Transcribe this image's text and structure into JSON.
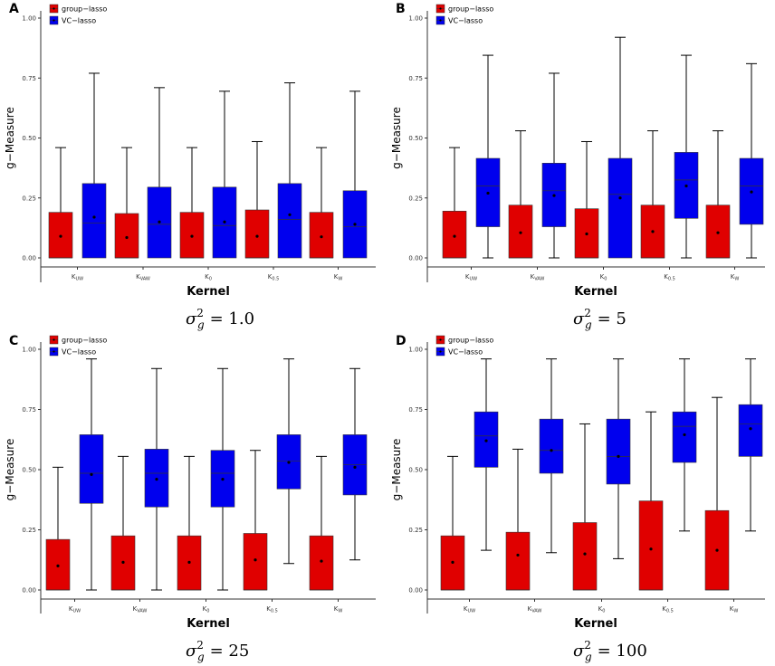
{
  "colors": {
    "group_lasso": "#e00000",
    "vc_lasso": "#0000ee",
    "axis": "#333333",
    "whisker": "#000000"
  },
  "chart_data": [
    {
      "panel": "A",
      "type": "box",
      "caption": {
        "symbol": "σ",
        "sup": "2",
        "sub": "g",
        "eq": "= 1.0"
      },
      "xlabel": "Kernel",
      "ylabel": "g−Measure",
      "ylim": [
        0,
        1
      ],
      "yticks": [
        "0.00",
        "0.25",
        "0.50",
        "0.75",
        "1.00"
      ],
      "categories": [
        {
          "base": "K",
          "sub": "UW"
        },
        {
          "base": "K",
          "sub": "VAW"
        },
        {
          "base": "K",
          "sub": "0"
        },
        {
          "base": "K",
          "sub": "0.5"
        },
        {
          "base": "K",
          "sub": "W"
        }
      ],
      "legend": [
        "group−lasso",
        "VC−lasso"
      ],
      "series": [
        {
          "name": "group−lasso",
          "boxes": [
            {
              "min": 0,
              "q1": 0,
              "median": 0,
              "q3": 0.19,
              "max": 0.46,
              "mean": 0.09
            },
            {
              "min": 0,
              "q1": 0,
              "median": 0,
              "q3": 0.185,
              "max": 0.46,
              "mean": 0.085
            },
            {
              "min": 0,
              "q1": 0,
              "median": 0,
              "q3": 0.19,
              "max": 0.46,
              "mean": 0.09
            },
            {
              "min": 0,
              "q1": 0,
              "median": 0,
              "q3": 0.2,
              "max": 0.485,
              "mean": 0.09
            },
            {
              "min": 0,
              "q1": 0,
              "median": 0,
              "q3": 0.19,
              "max": 0.46,
              "mean": 0.088
            }
          ]
        },
        {
          "name": "VC−lasso",
          "boxes": [
            {
              "min": 0,
              "q1": 0,
              "median": 0.145,
              "q3": 0.31,
              "max": 0.77,
              "mean": 0.17
            },
            {
              "min": 0,
              "q1": 0,
              "median": 0.14,
              "q3": 0.295,
              "max": 0.71,
              "mean": 0.15
            },
            {
              "min": 0,
              "q1": 0,
              "median": 0.135,
              "q3": 0.295,
              "max": 0.695,
              "mean": 0.15
            },
            {
              "min": 0,
              "q1": 0,
              "median": 0.16,
              "q3": 0.31,
              "max": 0.73,
              "mean": 0.18
            },
            {
              "min": 0,
              "q1": 0,
              "median": 0.13,
              "q3": 0.28,
              "max": 0.695,
              "mean": 0.14
            }
          ]
        }
      ]
    },
    {
      "panel": "B",
      "type": "box",
      "caption": {
        "symbol": "σ",
        "sup": "2",
        "sub": "g",
        "eq": "= 5"
      },
      "xlabel": "Kernel",
      "ylabel": "g−Measure",
      "ylim": [
        0,
        1
      ],
      "yticks": [
        "0.00",
        "0.25",
        "0.50",
        "0.75",
        "1.00"
      ],
      "categories": [
        {
          "base": "K",
          "sub": "UW"
        },
        {
          "base": "K",
          "sub": "VAW"
        },
        {
          "base": "K",
          "sub": "0"
        },
        {
          "base": "K",
          "sub": "0.5"
        },
        {
          "base": "K",
          "sub": "W"
        }
      ],
      "legend": [
        "group−lasso",
        "VC−lasso"
      ],
      "series": [
        {
          "name": "group−lasso",
          "boxes": [
            {
              "min": 0,
              "q1": 0,
              "median": 0,
              "q3": 0.195,
              "max": 0.46,
              "mean": 0.09
            },
            {
              "min": 0,
              "q1": 0,
              "median": 0,
              "q3": 0.22,
              "max": 0.53,
              "mean": 0.105
            },
            {
              "min": 0,
              "q1": 0,
              "median": 0,
              "q3": 0.205,
              "max": 0.485,
              "mean": 0.1
            },
            {
              "min": 0,
              "q1": 0,
              "median": 0,
              "q3": 0.22,
              "max": 0.53,
              "mean": 0.11
            },
            {
              "min": 0,
              "q1": 0,
              "median": 0,
              "q3": 0.22,
              "max": 0.53,
              "mean": 0.105
            }
          ]
        },
        {
          "name": "VC−lasso",
          "boxes": [
            {
              "min": 0,
              "q1": 0.13,
              "median": 0.3,
              "q3": 0.415,
              "max": 0.845,
              "mean": 0.27
            },
            {
              "min": 0,
              "q1": 0.13,
              "median": 0.28,
              "q3": 0.395,
              "max": 0.77,
              "mean": 0.26
            },
            {
              "min": 0,
              "q1": 0,
              "median": 0.265,
              "q3": 0.415,
              "max": 0.92,
              "mean": 0.25
            },
            {
              "min": 0,
              "q1": 0.165,
              "median": 0.325,
              "q3": 0.44,
              "max": 0.845,
              "mean": 0.3
            },
            {
              "min": 0,
              "q1": 0.14,
              "median": 0.3,
              "q3": 0.415,
              "max": 0.81,
              "mean": 0.275
            }
          ]
        }
      ]
    },
    {
      "panel": "C",
      "type": "box",
      "caption": {
        "symbol": "σ",
        "sup": "2",
        "sub": "g",
        "eq": "= 25"
      },
      "xlabel": "Kernel",
      "ylabel": "g−Measure",
      "ylim": [
        0,
        1
      ],
      "yticks": [
        "0.00",
        "0.25",
        "0.50",
        "0.75",
        "1.00"
      ],
      "categories": [
        {
          "base": "K",
          "sub": "UW"
        },
        {
          "base": "K",
          "sub": "VAW"
        },
        {
          "base": "K",
          "sub": "0"
        },
        {
          "base": "K",
          "sub": "0.5"
        },
        {
          "base": "K",
          "sub": "W"
        }
      ],
      "legend": [
        "group−lasso",
        "VC−lasso"
      ],
      "series": [
        {
          "name": "group−lasso",
          "boxes": [
            {
              "min": 0,
              "q1": 0,
              "median": 0,
              "q3": 0.21,
              "max": 0.51,
              "mean": 0.1
            },
            {
              "min": 0,
              "q1": 0,
              "median": 0,
              "q3": 0.225,
              "max": 0.555,
              "mean": 0.115
            },
            {
              "min": 0,
              "q1": 0,
              "median": 0,
              "q3": 0.225,
              "max": 0.555,
              "mean": 0.115
            },
            {
              "min": 0,
              "q1": 0,
              "median": 0,
              "q3": 0.235,
              "max": 0.58,
              "mean": 0.125
            },
            {
              "min": 0,
              "q1": 0,
              "median": 0,
              "q3": 0.225,
              "max": 0.555,
              "mean": 0.12
            }
          ]
        },
        {
          "name": "VC−lasso",
          "boxes": [
            {
              "min": 0,
              "q1": 0.36,
              "median": 0.485,
              "q3": 0.645,
              "max": 0.96,
              "mean": 0.48
            },
            {
              "min": 0,
              "q1": 0.345,
              "median": 0.485,
              "q3": 0.585,
              "max": 0.92,
              "mean": 0.46
            },
            {
              "min": 0,
              "q1": 0.345,
              "median": 0.485,
              "q3": 0.58,
              "max": 0.92,
              "mean": 0.46
            },
            {
              "min": 0.11,
              "q1": 0.42,
              "median": 0.535,
              "q3": 0.645,
              "max": 0.96,
              "mean": 0.53
            },
            {
              "min": 0.125,
              "q1": 0.395,
              "median": 0.52,
              "q3": 0.645,
              "max": 0.92,
              "mean": 0.51
            }
          ]
        }
      ]
    },
    {
      "panel": "D",
      "type": "box",
      "caption": {
        "symbol": "σ",
        "sup": "2",
        "sub": "g",
        "eq": "= 100"
      },
      "xlabel": "Kernel",
      "ylabel": "g−Measure",
      "ylim": [
        0,
        1
      ],
      "yticks": [
        "0.00",
        "0.25",
        "0.50",
        "0.75",
        "1.00"
      ],
      "categories": [
        {
          "base": "K",
          "sub": "UW"
        },
        {
          "base": "K",
          "sub": "VAW"
        },
        {
          "base": "K",
          "sub": "0"
        },
        {
          "base": "K",
          "sub": "0.5"
        },
        {
          "base": "K",
          "sub": "W"
        }
      ],
      "legend": [
        "group−lasso",
        "VC−lasso"
      ],
      "series": [
        {
          "name": "group−lasso",
          "boxes": [
            {
              "min": 0,
              "q1": 0,
              "median": 0,
              "q3": 0.225,
              "max": 0.555,
              "mean": 0.115
            },
            {
              "min": 0,
              "q1": 0,
              "median": 0,
              "q3": 0.24,
              "max": 0.585,
              "mean": 0.145
            },
            {
              "min": 0,
              "q1": 0,
              "median": 0,
              "q3": 0.28,
              "max": 0.69,
              "mean": 0.15
            },
            {
              "min": 0,
              "q1": 0,
              "median": 0,
              "q3": 0.37,
              "max": 0.74,
              "mean": 0.17
            },
            {
              "min": 0,
              "q1": 0,
              "median": 0,
              "q3": 0.33,
              "max": 0.8,
              "mean": 0.165
            }
          ]
        },
        {
          "name": "VC−lasso",
          "boxes": [
            {
              "min": 0.165,
              "q1": 0.51,
              "median": 0.64,
              "q3": 0.74,
              "max": 0.96,
              "mean": 0.62
            },
            {
              "min": 0.155,
              "q1": 0.485,
              "median": 0.58,
              "q3": 0.71,
              "max": 0.96,
              "mean": 0.58
            },
            {
              "min": 0.13,
              "q1": 0.44,
              "median": 0.555,
              "q3": 0.71,
              "max": 0.96,
              "mean": 0.555
            },
            {
              "min": 0.245,
              "q1": 0.53,
              "median": 0.68,
              "q3": 0.74,
              "max": 0.96,
              "mean": 0.645
            },
            {
              "min": 0.245,
              "q1": 0.555,
              "median": 0.69,
              "q3": 0.77,
              "max": 0.96,
              "mean": 0.67
            }
          ]
        }
      ]
    }
  ]
}
